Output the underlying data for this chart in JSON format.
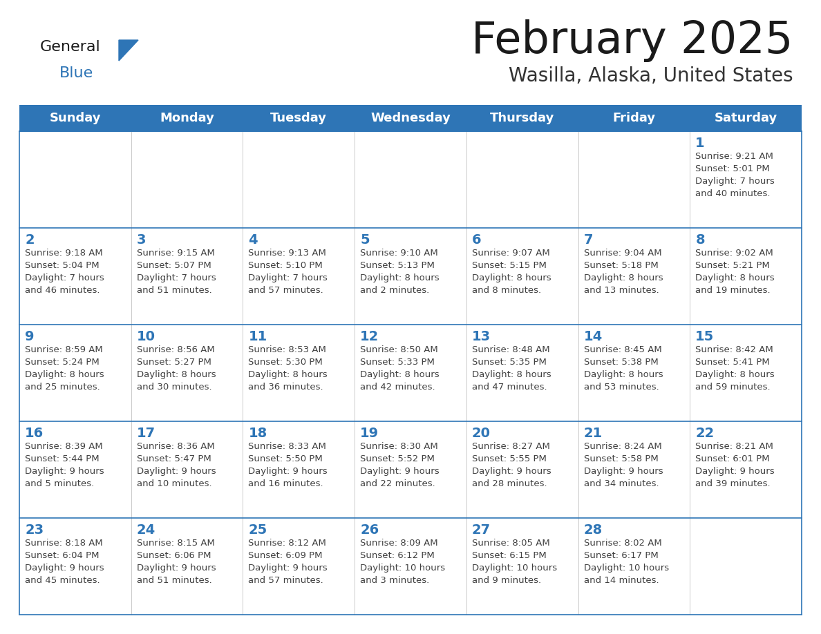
{
  "title": "February 2025",
  "subtitle": "Wasilla, Alaska, United States",
  "header_bg": "#2E75B6",
  "header_text": "#FFFFFF",
  "cell_bg": "#FFFFFF",
  "border_color": "#2E75B6",
  "row_border_color": "#2E75B6",
  "col_border_color": "#CCCCCC",
  "day_names": [
    "Sunday",
    "Monday",
    "Tuesday",
    "Wednesday",
    "Thursday",
    "Friday",
    "Saturday"
  ],
  "title_color": "#1a1a1a",
  "subtitle_color": "#333333",
  "day_num_color": "#2E75B6",
  "cell_text_color": "#404040",
  "logo_general_color": "#1a1a1a",
  "logo_blue_color": "#2E75B6",
  "calendar_data": [
    [
      {
        "day": null,
        "info": ""
      },
      {
        "day": null,
        "info": ""
      },
      {
        "day": null,
        "info": ""
      },
      {
        "day": null,
        "info": ""
      },
      {
        "day": null,
        "info": ""
      },
      {
        "day": null,
        "info": ""
      },
      {
        "day": 1,
        "info": "Sunrise: 9:21 AM\nSunset: 5:01 PM\nDaylight: 7 hours\nand 40 minutes."
      }
    ],
    [
      {
        "day": 2,
        "info": "Sunrise: 9:18 AM\nSunset: 5:04 PM\nDaylight: 7 hours\nand 46 minutes."
      },
      {
        "day": 3,
        "info": "Sunrise: 9:15 AM\nSunset: 5:07 PM\nDaylight: 7 hours\nand 51 minutes."
      },
      {
        "day": 4,
        "info": "Sunrise: 9:13 AM\nSunset: 5:10 PM\nDaylight: 7 hours\nand 57 minutes."
      },
      {
        "day": 5,
        "info": "Sunrise: 9:10 AM\nSunset: 5:13 PM\nDaylight: 8 hours\nand 2 minutes."
      },
      {
        "day": 6,
        "info": "Sunrise: 9:07 AM\nSunset: 5:15 PM\nDaylight: 8 hours\nand 8 minutes."
      },
      {
        "day": 7,
        "info": "Sunrise: 9:04 AM\nSunset: 5:18 PM\nDaylight: 8 hours\nand 13 minutes."
      },
      {
        "day": 8,
        "info": "Sunrise: 9:02 AM\nSunset: 5:21 PM\nDaylight: 8 hours\nand 19 minutes."
      }
    ],
    [
      {
        "day": 9,
        "info": "Sunrise: 8:59 AM\nSunset: 5:24 PM\nDaylight: 8 hours\nand 25 minutes."
      },
      {
        "day": 10,
        "info": "Sunrise: 8:56 AM\nSunset: 5:27 PM\nDaylight: 8 hours\nand 30 minutes."
      },
      {
        "day": 11,
        "info": "Sunrise: 8:53 AM\nSunset: 5:30 PM\nDaylight: 8 hours\nand 36 minutes."
      },
      {
        "day": 12,
        "info": "Sunrise: 8:50 AM\nSunset: 5:33 PM\nDaylight: 8 hours\nand 42 minutes."
      },
      {
        "day": 13,
        "info": "Sunrise: 8:48 AM\nSunset: 5:35 PM\nDaylight: 8 hours\nand 47 minutes."
      },
      {
        "day": 14,
        "info": "Sunrise: 8:45 AM\nSunset: 5:38 PM\nDaylight: 8 hours\nand 53 minutes."
      },
      {
        "day": 15,
        "info": "Sunrise: 8:42 AM\nSunset: 5:41 PM\nDaylight: 8 hours\nand 59 minutes."
      }
    ],
    [
      {
        "day": 16,
        "info": "Sunrise: 8:39 AM\nSunset: 5:44 PM\nDaylight: 9 hours\nand 5 minutes."
      },
      {
        "day": 17,
        "info": "Sunrise: 8:36 AM\nSunset: 5:47 PM\nDaylight: 9 hours\nand 10 minutes."
      },
      {
        "day": 18,
        "info": "Sunrise: 8:33 AM\nSunset: 5:50 PM\nDaylight: 9 hours\nand 16 minutes."
      },
      {
        "day": 19,
        "info": "Sunrise: 8:30 AM\nSunset: 5:52 PM\nDaylight: 9 hours\nand 22 minutes."
      },
      {
        "day": 20,
        "info": "Sunrise: 8:27 AM\nSunset: 5:55 PM\nDaylight: 9 hours\nand 28 minutes."
      },
      {
        "day": 21,
        "info": "Sunrise: 8:24 AM\nSunset: 5:58 PM\nDaylight: 9 hours\nand 34 minutes."
      },
      {
        "day": 22,
        "info": "Sunrise: 8:21 AM\nSunset: 6:01 PM\nDaylight: 9 hours\nand 39 minutes."
      }
    ],
    [
      {
        "day": 23,
        "info": "Sunrise: 8:18 AM\nSunset: 6:04 PM\nDaylight: 9 hours\nand 45 minutes."
      },
      {
        "day": 24,
        "info": "Sunrise: 8:15 AM\nSunset: 6:06 PM\nDaylight: 9 hours\nand 51 minutes."
      },
      {
        "day": 25,
        "info": "Sunrise: 8:12 AM\nSunset: 6:09 PM\nDaylight: 9 hours\nand 57 minutes."
      },
      {
        "day": 26,
        "info": "Sunrise: 8:09 AM\nSunset: 6:12 PM\nDaylight: 10 hours\nand 3 minutes."
      },
      {
        "day": 27,
        "info": "Sunrise: 8:05 AM\nSunset: 6:15 PM\nDaylight: 10 hours\nand 9 minutes."
      },
      {
        "day": 28,
        "info": "Sunrise: 8:02 AM\nSunset: 6:17 PM\nDaylight: 10 hours\nand 14 minutes."
      },
      {
        "day": null,
        "info": ""
      }
    ]
  ]
}
